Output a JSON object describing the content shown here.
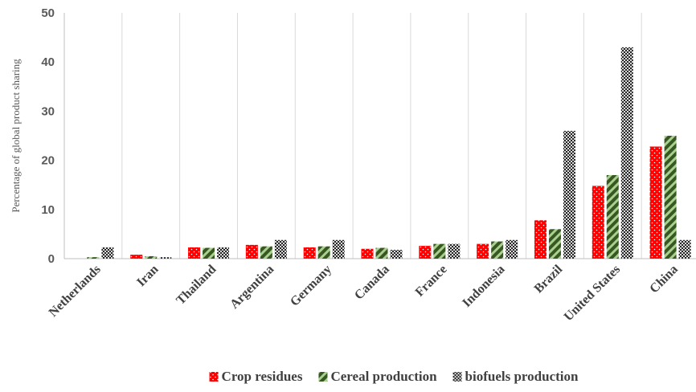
{
  "chart_data": {
    "type": "bar",
    "title": "",
    "xlabel": "",
    "ylabel": "Percentage of global product sharing",
    "ylim": [
      0,
      50
    ],
    "yticks": [
      0,
      10,
      20,
      30,
      40,
      50
    ],
    "grid": "vertical",
    "legend": "bottom",
    "categories": [
      "Netherlands",
      "Iran",
      "Thailand",
      "Argentina",
      "Germany",
      "Canada",
      "France",
      "Indonesia",
      "Brazil",
      "United States",
      "China"
    ],
    "series": [
      {
        "name": "Crop residues",
        "color": "#ff0000",
        "pattern": "red-dots",
        "values": [
          0,
          0.8,
          2.3,
          2.8,
          2.3,
          2.0,
          2.6,
          3.0,
          7.8,
          14.8,
          22.8
        ]
      },
      {
        "name": "Cereal production",
        "color": "#548235",
        "pattern": "green-stripes",
        "values": [
          0.3,
          0.5,
          2.2,
          2.5,
          2.5,
          2.2,
          3.0,
          3.5,
          6.0,
          17.0,
          25.0
        ]
      },
      {
        "name": "biofuels production",
        "color": "#404040",
        "pattern": "dark-checker",
        "values": [
          2.3,
          0.3,
          2.3,
          3.8,
          3.8,
          1.8,
          3.0,
          3.8,
          26.0,
          43.0,
          3.8
        ]
      }
    ]
  }
}
